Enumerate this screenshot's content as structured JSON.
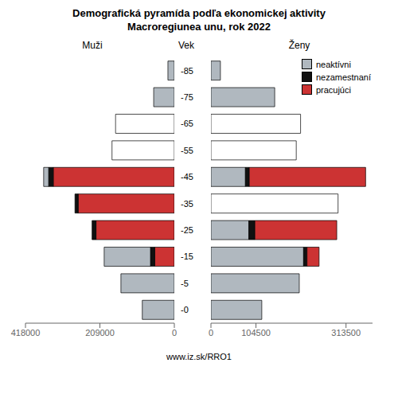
{
  "title": "Demografická pyramída podľa ekonomickej aktivity",
  "subtitle": "Macroregiunea unu, rok 2022",
  "annotations": [
    "www.iz.sk/RRO1"
  ],
  "chart_data": [
    {
      "type": "bar",
      "orientation": "horizontal",
      "stacked": true,
      "title": "Muži",
      "ylabel": "Vek",
      "categories": [
        "-85",
        "-75",
        "-65",
        "-55",
        "-45",
        "-35",
        "-25",
        "-15",
        "-5",
        "-0"
      ],
      "xlim": [
        418000,
        0
      ],
      "xticks": [
        418000,
        209000,
        0
      ],
      "series": [
        {
          "name": "pracujúci",
          "color": "#cc3333",
          "values": [
            0,
            0,
            0,
            0,
            340000,
            270000,
            220000,
            55000,
            0,
            0
          ]
        },
        {
          "name": "nezamestnaní",
          "color": "#111111",
          "values": [
            0,
            0,
            0,
            0,
            13000,
            9000,
            11000,
            12000,
            0,
            0
          ]
        },
        {
          "name": "neaktívni",
          "color": "#b0b8bf",
          "values": [
            18000,
            58000,
            0,
            0,
            14000,
            0,
            0,
            130000,
            150000,
            90000
          ]
        },
        {
          "color": "#ffffff",
          "values": [
            0,
            0,
            165000,
            175000,
            0,
            0,
            0,
            0,
            0,
            0
          ]
        }
      ]
    },
    {
      "type": "bar",
      "orientation": "horizontal",
      "stacked": true,
      "title": "Ženy",
      "tick_labels": "x",
      "legend": "upper right",
      "categories": [
        "-85",
        "-75",
        "-65",
        "-55",
        "-45",
        "-35",
        "-25",
        "-15",
        "-5",
        "-0"
      ],
      "xlim": [
        0,
        375000
      ],
      "xticks": [
        0,
        104500,
        313500
      ],
      "series": [
        {
          "name": "neaktívni",
          "color": "#b0b8bf",
          "values": [
            22000,
            148000,
            0,
            0,
            80000,
            0,
            88000,
            215000,
            205000,
            118000
          ]
        },
        {
          "name": "nezamestnaní",
          "color": "#111111",
          "values": [
            0,
            0,
            0,
            0,
            9000,
            0,
            14000,
            8000,
            0,
            0
          ]
        },
        {
          "name": "pracujúci",
          "color": "#cc3333",
          "values": [
            0,
            0,
            0,
            0,
            270000,
            0,
            190000,
            28000,
            0,
            0
          ]
        },
        {
          "color": "#ffffff",
          "values": [
            0,
            0,
            208000,
            198000,
            0,
            295000,
            0,
            0,
            0,
            0
          ]
        }
      ]
    }
  ]
}
